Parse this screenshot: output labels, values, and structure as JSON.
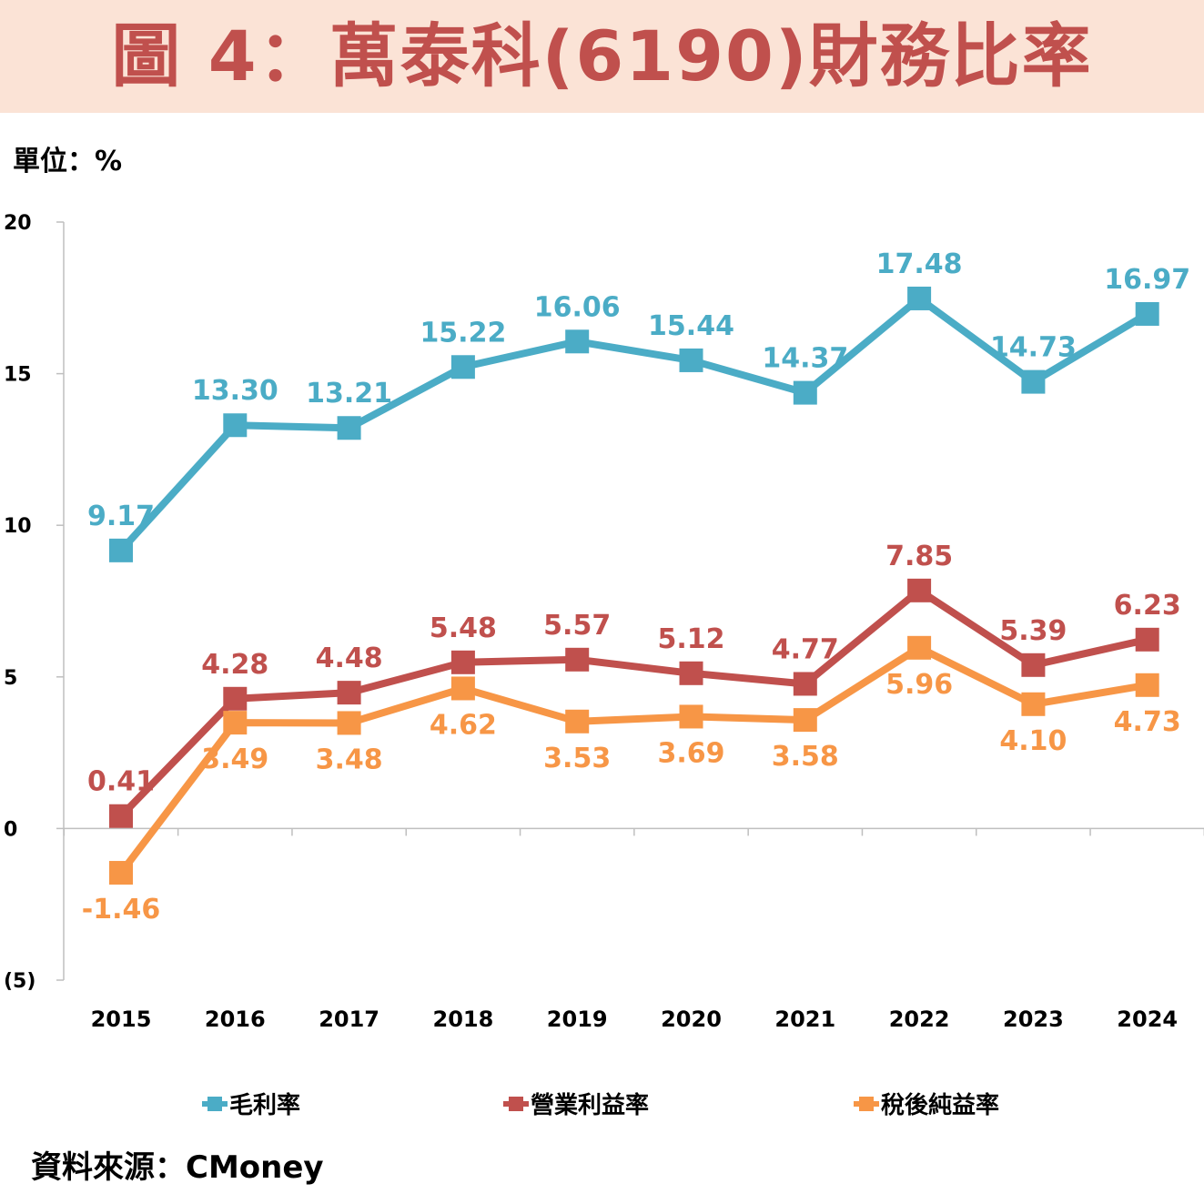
{
  "title": "圖 4：萬泰科(6190)財務比率",
  "unit_label": "單位：%",
  "source_label": "資料來源：CMoney",
  "colors": {
    "gross": "#4bacc6",
    "operating": "#c0504d",
    "net": "#f79646",
    "negative_tick": "#c00000",
    "title_bg": "#fbe3d6"
  },
  "chart_data": {
    "type": "line",
    "title": "圖 4：萬泰科(6190)財務比率",
    "xlabel": "",
    "ylabel": "單位：%",
    "ylim": [
      -5,
      20
    ],
    "y_ticks": [
      {
        "value": 20,
        "label": "20"
      },
      {
        "value": 15,
        "label": "15"
      },
      {
        "value": 10,
        "label": "10"
      },
      {
        "value": 5,
        "label": "5"
      },
      {
        "value": 0,
        "label": "0"
      },
      {
        "value": -5,
        "label": "(5)"
      }
    ],
    "categories": [
      "2015",
      "2016",
      "2017",
      "2018",
      "2019",
      "2020",
      "2021",
      "2022",
      "2023",
      "2024"
    ],
    "legend_position": "bottom",
    "series": [
      {
        "key": "gross",
        "name": "毛利率",
        "color": "#4bacc6",
        "values": [
          9.17,
          13.3,
          13.21,
          15.22,
          16.06,
          15.44,
          14.37,
          17.48,
          14.73,
          16.97
        ],
        "labels": [
          "9.17",
          "13.30",
          "13.21",
          "15.22",
          "16.06",
          "15.44",
          "14.37",
          "17.48",
          "14.73",
          "16.97"
        ],
        "label_side": [
          "above",
          "above",
          "above",
          "above",
          "above",
          "above",
          "above",
          "above",
          "above",
          "above"
        ]
      },
      {
        "key": "operating",
        "name": "營業利益率",
        "color": "#c0504d",
        "values": [
          0.41,
          4.28,
          4.48,
          5.48,
          5.57,
          5.12,
          4.77,
          7.85,
          5.39,
          6.23
        ],
        "labels": [
          "0.41",
          "4.28",
          "4.48",
          "5.48",
          "5.57",
          "5.12",
          "4.77",
          "7.85",
          "5.39",
          "6.23"
        ],
        "label_side": [
          "above",
          "above",
          "above",
          "above",
          "above",
          "above",
          "above",
          "above",
          "above",
          "above"
        ]
      },
      {
        "key": "net",
        "name": "稅後純益率",
        "color": "#f79646",
        "values": [
          -1.46,
          3.49,
          3.48,
          4.62,
          3.53,
          3.69,
          3.58,
          5.96,
          4.1,
          4.73
        ],
        "labels": [
          "-1.46",
          "3.49",
          "3.48",
          "4.62",
          "3.53",
          "3.69",
          "3.58",
          "5.96",
          "4.10",
          "4.73"
        ],
        "label_side": [
          "below",
          "below",
          "below",
          "below",
          "below",
          "below",
          "below",
          "below",
          "below",
          "below"
        ]
      }
    ]
  }
}
